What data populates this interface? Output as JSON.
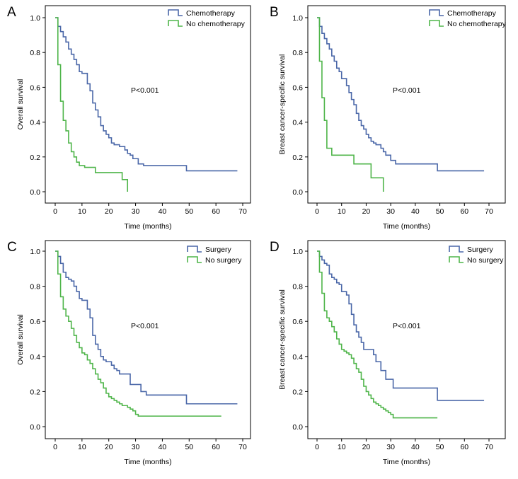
{
  "colors": {
    "series_a": "#4a67a8",
    "series_b": "#4fb54a",
    "axis": "#000000"
  },
  "chart_data": [
    {
      "type": "line",
      "panel_label": "A",
      "ylabel": "Overall survival",
      "xlabel": "Time (months)",
      "annotation": "P<0.001",
      "xlim": [
        0,
        70
      ],
      "ylim": [
        0,
        1
      ],
      "xticks": [
        "0",
        "10",
        "20",
        "30",
        "40",
        "50",
        "60",
        "70"
      ],
      "yticks": [
        "0.0",
        "0.2",
        "0.4",
        "0.6",
        "0.8",
        "1.0"
      ],
      "legend": [
        "Chemotherapy",
        "No chemotherapy"
      ],
      "series": [
        {
          "name": "Chemotherapy",
          "color": "#4a67a8",
          "x": [
            0,
            1,
            2,
            3,
            4,
            5,
            6,
            7,
            8,
            9,
            10,
            12,
            13,
            14,
            15,
            16,
            17,
            18,
            19,
            20,
            21,
            22,
            24,
            26,
            27,
            28,
            29,
            31,
            33,
            35,
            41,
            49,
            68
          ],
          "y": [
            1.0,
            0.95,
            0.92,
            0.89,
            0.86,
            0.82,
            0.79,
            0.76,
            0.73,
            0.69,
            0.68,
            0.62,
            0.58,
            0.51,
            0.47,
            0.43,
            0.38,
            0.35,
            0.33,
            0.31,
            0.28,
            0.27,
            0.26,
            0.24,
            0.22,
            0.21,
            0.19,
            0.16,
            0.15,
            0.15,
            0.15,
            0.12,
            0.12
          ]
        },
        {
          "name": "No chemotherapy",
          "color": "#4fb54a",
          "x": [
            0,
            1,
            2,
            3,
            4,
            5,
            6,
            7,
            8,
            9,
            11,
            15,
            22,
            25,
            27
          ],
          "y": [
            1.0,
            0.73,
            0.52,
            0.41,
            0.35,
            0.28,
            0.23,
            0.2,
            0.17,
            0.15,
            0.14,
            0.11,
            0.11,
            0.07,
            0.0
          ]
        }
      ]
    },
    {
      "type": "line",
      "panel_label": "B",
      "ylabel": "Breast cancer-specific survival",
      "xlabel": "Time (months)",
      "annotation": "P<0.001",
      "xlim": [
        0,
        70
      ],
      "ylim": [
        0,
        1
      ],
      "xticks": [
        "0",
        "10",
        "20",
        "30",
        "40",
        "50",
        "60",
        "70"
      ],
      "yticks": [
        "0.0",
        "0.2",
        "0.4",
        "0.6",
        "0.8",
        "1.0"
      ],
      "legend": [
        "Chemotherapy",
        "No chemotherapy"
      ],
      "series": [
        {
          "name": "Chemotherapy",
          "color": "#4a67a8",
          "x": [
            0,
            1,
            2,
            3,
            4,
            5,
            6,
            7,
            8,
            9,
            10,
            12,
            13,
            14,
            15,
            16,
            17,
            18,
            19,
            20,
            21,
            22,
            23,
            24,
            26,
            27,
            28,
            30,
            32,
            35,
            41,
            49,
            68
          ],
          "y": [
            1.0,
            0.95,
            0.91,
            0.88,
            0.85,
            0.82,
            0.78,
            0.75,
            0.71,
            0.69,
            0.65,
            0.61,
            0.57,
            0.53,
            0.5,
            0.45,
            0.41,
            0.38,
            0.36,
            0.33,
            0.31,
            0.29,
            0.28,
            0.27,
            0.25,
            0.23,
            0.21,
            0.18,
            0.16,
            0.16,
            0.16,
            0.12,
            0.12
          ]
        },
        {
          "name": "No chemotherapy",
          "color": "#4fb54a",
          "x": [
            0,
            1,
            2,
            3,
            4,
            6,
            15,
            22,
            25,
            27
          ],
          "y": [
            1.0,
            0.75,
            0.54,
            0.41,
            0.25,
            0.21,
            0.16,
            0.08,
            0.08,
            0.0
          ]
        }
      ]
    },
    {
      "type": "line",
      "panel_label": "C",
      "ylabel": "Overall survival",
      "xlabel": "Time (months)",
      "annotation": "P<0.001",
      "xlim": [
        0,
        70
      ],
      "ylim": [
        0,
        1
      ],
      "xticks": [
        "0",
        "10",
        "20",
        "30",
        "40",
        "50",
        "60",
        "70"
      ],
      "yticks": [
        "0.0",
        "0.2",
        "0.4",
        "0.6",
        "0.8",
        "1.0"
      ],
      "legend": [
        "Surgery",
        "No surgery"
      ],
      "series": [
        {
          "name": "Surgery",
          "color": "#4a67a8",
          "x": [
            0,
            1,
            2,
            3,
            4,
            5,
            6,
            7,
            8,
            9,
            10,
            12,
            13,
            14,
            15,
            16,
            17,
            18,
            19,
            21,
            22,
            23,
            24,
            26,
            28,
            30,
            32,
            34,
            36,
            40,
            49,
            55,
            68
          ],
          "y": [
            1.0,
            0.97,
            0.93,
            0.88,
            0.85,
            0.84,
            0.83,
            0.8,
            0.77,
            0.73,
            0.72,
            0.67,
            0.62,
            0.52,
            0.47,
            0.44,
            0.4,
            0.38,
            0.37,
            0.35,
            0.33,
            0.32,
            0.3,
            0.3,
            0.24,
            0.24,
            0.2,
            0.18,
            0.18,
            0.18,
            0.13,
            0.13,
            0.13
          ]
        },
        {
          "name": "No surgery",
          "color": "#4fb54a",
          "x": [
            0,
            1,
            2,
            3,
            4,
            5,
            6,
            7,
            8,
            9,
            10,
            11,
            12,
            13,
            14,
            15,
            16,
            17,
            18,
            19,
            20,
            21,
            22,
            23,
            24,
            25,
            26,
            27,
            28,
            29,
            30,
            31,
            62
          ],
          "y": [
            1.0,
            0.87,
            0.74,
            0.67,
            0.63,
            0.6,
            0.56,
            0.52,
            0.48,
            0.45,
            0.42,
            0.41,
            0.38,
            0.36,
            0.33,
            0.3,
            0.27,
            0.25,
            0.22,
            0.19,
            0.17,
            0.16,
            0.15,
            0.14,
            0.13,
            0.12,
            0.12,
            0.11,
            0.1,
            0.09,
            0.07,
            0.06,
            0.06
          ]
        }
      ]
    },
    {
      "type": "line",
      "panel_label": "D",
      "ylabel": "Breast cancer-specific survival",
      "xlabel": "Time (months)",
      "annotation": "P<0.001",
      "xlim": [
        0,
        70
      ],
      "ylim": [
        0,
        1
      ],
      "xticks": [
        "0",
        "10",
        "20",
        "30",
        "40",
        "50",
        "60",
        "70"
      ],
      "yticks": [
        "0.0",
        "0.2",
        "0.4",
        "0.6",
        "0.8",
        "1.0"
      ],
      "legend": [
        "Surgery",
        "No surgery"
      ],
      "series": [
        {
          "name": "Surgery",
          "color": "#4a67a8",
          "x": [
            0,
            1,
            2,
            3,
            4,
            5,
            6,
            7,
            8,
            9,
            10,
            12,
            13,
            14,
            15,
            16,
            17,
            18,
            19,
            21,
            23,
            24,
            26,
            28,
            31,
            35,
            40,
            49,
            68
          ],
          "y": [
            1.0,
            0.97,
            0.95,
            0.93,
            0.92,
            0.87,
            0.85,
            0.84,
            0.82,
            0.81,
            0.77,
            0.75,
            0.7,
            0.64,
            0.58,
            0.54,
            0.51,
            0.48,
            0.44,
            0.44,
            0.41,
            0.37,
            0.32,
            0.27,
            0.22,
            0.22,
            0.22,
            0.15,
            0.15
          ]
        },
        {
          "name": "No surgery",
          "color": "#4fb54a",
          "x": [
            0,
            1,
            2,
            3,
            4,
            5,
            6,
            7,
            8,
            9,
            10,
            11,
            12,
            13,
            14,
            15,
            16,
            17,
            18,
            19,
            20,
            21,
            22,
            23,
            24,
            25,
            26,
            27,
            28,
            29,
            30,
            31,
            49
          ],
          "y": [
            1.0,
            0.88,
            0.76,
            0.66,
            0.62,
            0.6,
            0.57,
            0.54,
            0.5,
            0.47,
            0.44,
            0.43,
            0.42,
            0.41,
            0.39,
            0.36,
            0.33,
            0.31,
            0.27,
            0.23,
            0.2,
            0.18,
            0.16,
            0.14,
            0.13,
            0.12,
            0.11,
            0.1,
            0.09,
            0.08,
            0.07,
            0.05,
            0.05
          ]
        }
      ]
    }
  ]
}
